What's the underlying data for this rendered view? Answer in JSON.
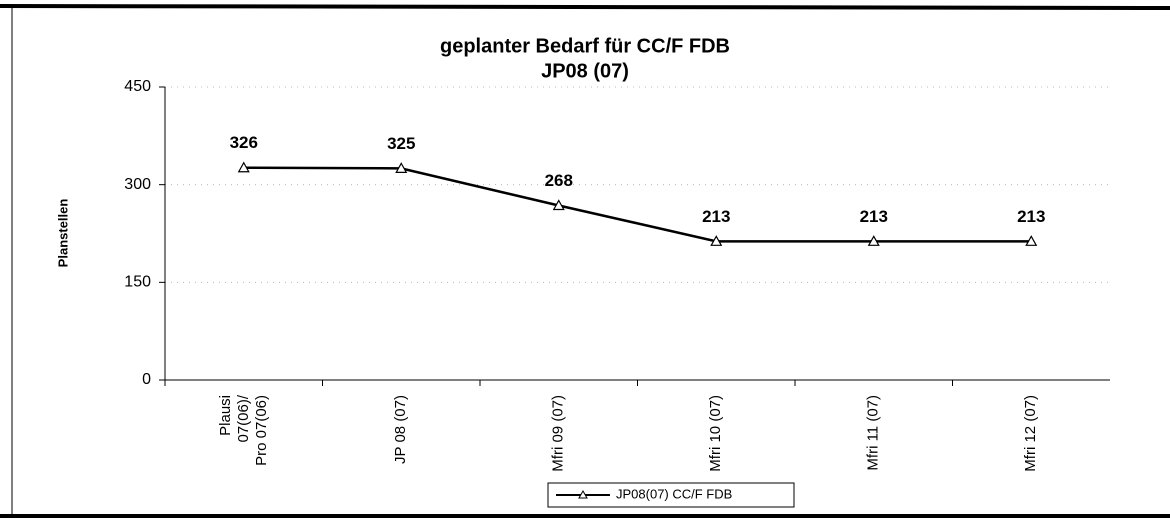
{
  "chart_data": {
    "type": "line",
    "title": "geplanter Bedarf für CC/F FDB",
    "subtitle": "JP08 (07)",
    "y_label": "Planstellen",
    "categories": [
      "Plausi\n07(06)/\nPro 07(06)",
      "JP 08 (07)",
      "Mfri 09 (07)",
      "Mfri 10 (07)",
      "Mfri 11 (07)",
      "Mfri 12 (07)"
    ],
    "series": [
      {
        "name": "JP08(07) CC/F FDB",
        "color": "#000000",
        "values": [
          326,
          325,
          268,
          213,
          213,
          213
        ]
      }
    ],
    "ylim": [
      0,
      450
    ],
    "yticks": [
      0,
      150,
      300,
      450
    ],
    "grid": true,
    "legend": "bottom"
  }
}
